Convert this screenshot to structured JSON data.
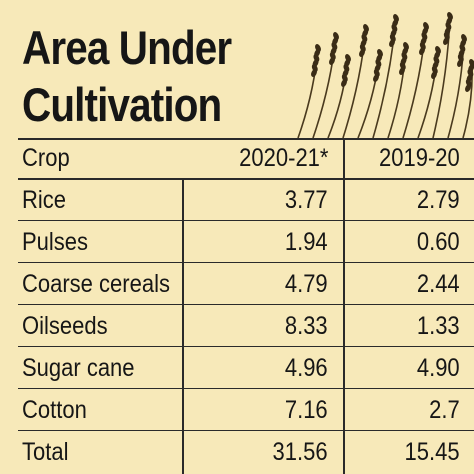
{
  "chart_data": {
    "type": "table",
    "title_lines": [
      "Area Under",
      "Cultivation"
    ],
    "columns": [
      "Crop",
      "2020-21*",
      "2019-20"
    ],
    "rows": [
      {
        "crop": "Rice",
        "y2020_21": "3.77",
        "y2019_20": "2.79"
      },
      {
        "crop": "Pulses",
        "y2020_21": "1.94",
        "y2019_20": "0.60"
      },
      {
        "crop": "Coarse cereals",
        "y2020_21": "4.79",
        "y2019_20": "2.44"
      },
      {
        "crop": "Oilseeds",
        "y2020_21": "8.33",
        "y2019_20": "1.33"
      },
      {
        "crop": "Sugar cane",
        "y2020_21": "4.96",
        "y2019_20": "4.90"
      },
      {
        "crop": "Cotton",
        "y2020_21": "7.16",
        "y2019_20": "2.7"
      },
      {
        "crop": "Total",
        "y2020_21": "31.56",
        "y2019_20": "15.45"
      }
    ]
  },
  "colors": {
    "background": "#f7e9b9",
    "text": "#161616",
    "rule": "#2a2a2a",
    "wheat": "#3a2c16"
  },
  "decoration": "wheat-stalks-icon"
}
